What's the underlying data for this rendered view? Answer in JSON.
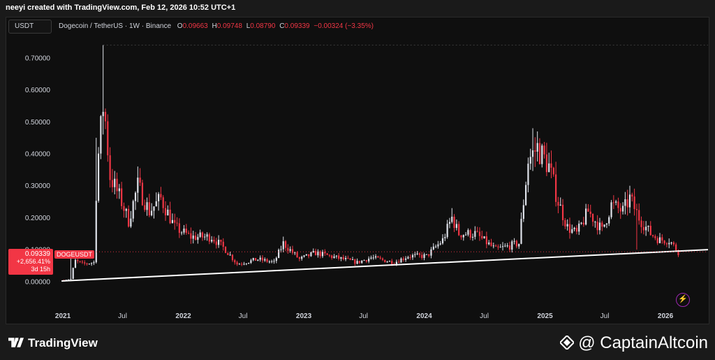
{
  "header": {
    "credit": "neeyi created with TradingView.com, Feb 12, 2026 10:52 UTC+1"
  },
  "toolbar": {
    "currency_label": "USDT"
  },
  "legend": {
    "symbol": "Dogecoin / TetherUS · 1W · Binance",
    "o_label": "O",
    "o_value": "0.09663",
    "h_label": "H",
    "h_value": "0.09748",
    "l_label": "L",
    "l_value": "0.08790",
    "c_label": "C",
    "c_value": "0.09339",
    "change": "−0.00324 (−3.35%)"
  },
  "price_tag": {
    "price": "0.09339",
    "change_pct": "+2,656.41%",
    "countdown": "3d 15h",
    "symbol": "DOGEUSDT"
  },
  "branding": {
    "logo_text": "TradingView",
    "watermark": "@ CaptainAltcoin"
  },
  "colors": {
    "up": "#e0e3eb",
    "down": "#f23645",
    "trendline": "#ffffff",
    "background": "#0f0f0f"
  },
  "chart_data": {
    "type": "candlestick",
    "title": "Dogecoin / TetherUS · 1W · Binance",
    "interval": "1W",
    "ylim": [
      -0.02,
      0.75
    ],
    "y_ticks": [
      "0.70000",
      "0.60000",
      "0.50000",
      "0.40000",
      "0.30000",
      "0.20000",
      "0.10000",
      "0.00000"
    ],
    "y_tick_values": [
      0.7,
      0.6,
      0.5,
      0.4,
      0.3,
      0.2,
      0.1,
      0.0
    ],
    "x_tick_labels": [
      "2021",
      "Jul",
      "2022",
      "Jul",
      "2023",
      "Jul",
      "2024",
      "Jul",
      "2025",
      "Jul",
      "2026"
    ],
    "x_tick_dates": [
      "2021-01-01",
      "2021-07-01",
      "2022-01-01",
      "2022-07-01",
      "2023-01-01",
      "2023-07-01",
      "2024-01-01",
      "2024-07-01",
      "2025-01-01",
      "2025-07-01",
      "2026-01-01"
    ],
    "x_range": [
      "2020-12-15",
      "2026-05-10"
    ],
    "current_price": 0.09339,
    "trendline": {
      "from": [
        "2020-12-28",
        0.002
      ],
      "to": [
        "2026-05-10",
        0.1
      ]
    },
    "grid": false,
    "anchors": [
      [
        "2021-01-04",
        0.005
      ],
      [
        "2021-01-25",
        0.008
      ],
      [
        "2021-02-01",
        0.04
      ],
      [
        "2021-02-08",
        0.065
      ],
      [
        "2021-03-01",
        0.055
      ],
      [
        "2021-04-05",
        0.06
      ],
      [
        "2021-04-12",
        0.28
      ],
      [
        "2021-04-19",
        0.4
      ],
      [
        "2021-05-03",
        0.55
      ],
      [
        "2021-05-10",
        0.5
      ],
      [
        "2021-05-24",
        0.33
      ],
      [
        "2021-06-28",
        0.25
      ],
      [
        "2021-07-19",
        0.19
      ],
      [
        "2021-08-16",
        0.3
      ],
      [
        "2021-09-20",
        0.22
      ],
      [
        "2021-10-25",
        0.26
      ],
      [
        "2021-12-06",
        0.17
      ],
      [
        "2022-01-24",
        0.14
      ],
      [
        "2022-03-28",
        0.14
      ],
      [
        "2022-05-09",
        0.1
      ],
      [
        "2022-06-13",
        0.055
      ],
      [
        "2022-08-15",
        0.07
      ],
      [
        "2022-10-03",
        0.06
      ],
      [
        "2022-10-31",
        0.12
      ],
      [
        "2022-12-19",
        0.07
      ],
      [
        "2023-02-06",
        0.09
      ],
      [
        "2023-06-12",
        0.06
      ],
      [
        "2023-07-24",
        0.075
      ],
      [
        "2023-10-02",
        0.06
      ],
      [
        "2023-11-13",
        0.08
      ],
      [
        "2024-01-08",
        0.08
      ],
      [
        "2024-02-26",
        0.13
      ],
      [
        "2024-03-25",
        0.2
      ],
      [
        "2024-04-15",
        0.15
      ],
      [
        "2024-06-03",
        0.15
      ],
      [
        "2024-08-05",
        0.1
      ],
      [
        "2024-10-14",
        0.12
      ],
      [
        "2024-11-11",
        0.38
      ],
      [
        "2024-12-09",
        0.42
      ],
      [
        "2025-01-13",
        0.36
      ],
      [
        "2025-02-10",
        0.25
      ],
      [
        "2025-03-10",
        0.17
      ],
      [
        "2025-04-07",
        0.15
      ],
      [
        "2025-05-12",
        0.22
      ],
      [
        "2025-06-23",
        0.16
      ],
      [
        "2025-07-21",
        0.24
      ],
      [
        "2025-08-25",
        0.22
      ],
      [
        "2025-09-15",
        0.26
      ],
      [
        "2025-10-13",
        0.2
      ],
      [
        "2025-11-17",
        0.15
      ],
      [
        "2025-12-15",
        0.13
      ],
      [
        "2026-01-12",
        0.13
      ],
      [
        "2026-02-09",
        0.093
      ]
    ],
    "spikes": [
      [
        "2021-01-25",
        0.08
      ],
      [
        "2021-05-03",
        0.74
      ],
      [
        "2021-04-12",
        0.45
      ],
      [
        "2024-03-25",
        0.23
      ],
      [
        "2024-11-25",
        0.48
      ],
      [
        "2024-12-09",
        0.47
      ],
      [
        "2025-09-15",
        0.3
      ],
      [
        "2025-10-06",
        0.1
      ]
    ]
  }
}
